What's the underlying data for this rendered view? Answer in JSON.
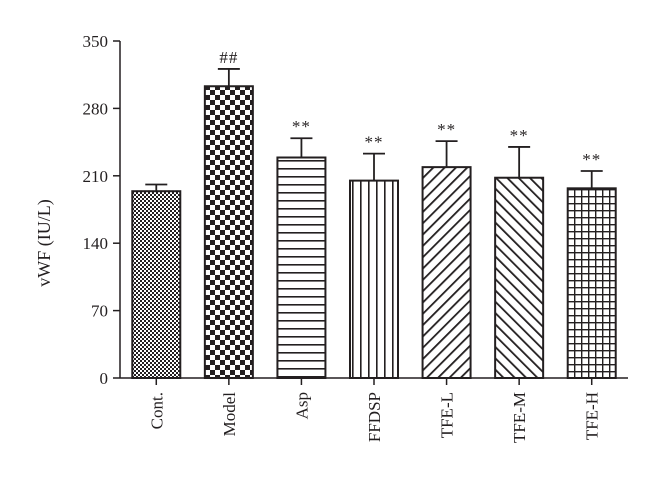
{
  "chart_data": {
    "type": "bar",
    "ylabel": "vWF (IU/L)",
    "xlabel": "",
    "ylim": [
      0,
      350
    ],
    "yticks": [
      0,
      70,
      140,
      210,
      280,
      350
    ],
    "categories": [
      "Cont.",
      "Model",
      "Asp",
      "FFDSP",
      "TFE-L",
      "TFE-M",
      "TFE-H"
    ],
    "values": [
      194,
      303,
      229,
      205,
      219,
      208,
      197
    ],
    "errors": [
      7,
      18,
      20,
      28,
      27,
      32,
      18
    ],
    "significance": [
      "",
      "##",
      "**",
      "**",
      "**",
      "**",
      "**"
    ],
    "patterns": [
      "fine-checker",
      "large-checker",
      "horizontal-lines",
      "vertical-lines",
      "diagonal-up",
      "diagonal-down",
      "grid"
    ],
    "grid": false,
    "legend": "none",
    "bar_color": "#231f20"
  }
}
